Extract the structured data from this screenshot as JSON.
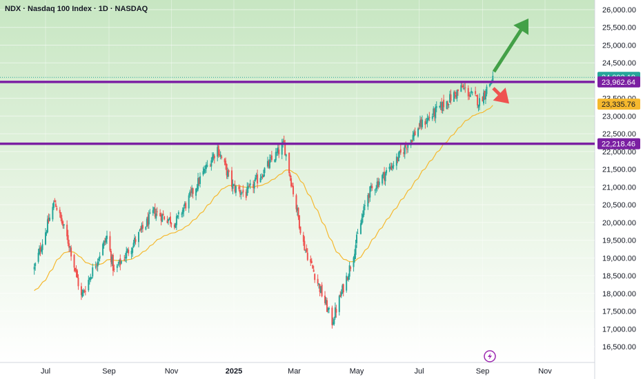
{
  "header": {
    "title": "NDX · Nasdaq 100 Index · 1D · NASDAQ"
  },
  "chart_data": {
    "type": "candlestick",
    "title": "NDX · Nasdaq 100 Index · 1D · NASDAQ",
    "y_ticks": [
      "26,000.00",
      "25,500.00",
      "25,000.00",
      "24,500.00",
      "24,000.00",
      "23,500.00",
      "23,000.00",
      "22,500.00",
      "22,000.00",
      "21,500.00",
      "21,000.00",
      "20,500.00",
      "20,000.00",
      "19,500.00",
      "19,000.00",
      "18,500.00",
      "18,000.00",
      "17,500.00",
      "17,000.00",
      "16,500.00"
    ],
    "x_ticks": [
      "Jul",
      "Sep",
      "Nov",
      "2025",
      "Mar",
      "May",
      "Jul",
      "Sep",
      "Nov"
    ],
    "ylim": [
      16200,
      26100
    ],
    "price_labels": [
      {
        "text": "24,092.19",
        "value": 24092.19,
        "color": "#26a69a"
      },
      {
        "text": "23,962.64",
        "value": 23962.64,
        "color": "#7b1fa2"
      },
      {
        "text": "23,335.76",
        "value": 23335.76,
        "color": "#f5b82e"
      },
      {
        "text": "22,218.46",
        "value": 22218.46,
        "color": "#7b1fa2"
      }
    ],
    "horizontal_levels": [
      23962.64,
      22218.46
    ],
    "moving_average": {
      "last_value": 23335.76,
      "color": "#f5b82e"
    },
    "anchors": [
      {
        "x": "2024-06-20",
        "y": 18700
      },
      {
        "x": "2024-07-10",
        "y": 20600
      },
      {
        "x": "2024-07-25",
        "y": 19300
      },
      {
        "x": "2024-08-05",
        "y": 17900
      },
      {
        "x": "2024-08-30",
        "y": 19600
      },
      {
        "x": "2024-09-06",
        "y": 18600
      },
      {
        "x": "2024-10-15",
        "y": 20300
      },
      {
        "x": "2024-11-05",
        "y": 20000
      },
      {
        "x": "2024-12-16",
        "y": 22100
      },
      {
        "x": "2024-12-31",
        "y": 21000
      },
      {
        "x": "2025-01-13",
        "y": 20800
      },
      {
        "x": "2025-02-19",
        "y": 22200
      },
      {
        "x": "2025-03-10",
        "y": 19400
      },
      {
        "x": "2025-04-07",
        "y": 17200
      },
      {
        "x": "2025-04-25",
        "y": 18800
      },
      {
        "x": "2025-05-12",
        "y": 20800
      },
      {
        "x": "2025-06-10",
        "y": 21800
      },
      {
        "x": "2025-07-01",
        "y": 22700
      },
      {
        "x": "2025-08-12",
        "y": 23800
      },
      {
        "x": "2025-08-29",
        "y": 23400
      },
      {
        "x": "2025-09-11",
        "y": 24092.19
      }
    ],
    "colors": {
      "up": "#26a69a",
      "down": "#ef5350",
      "levels": "#7b1fa2",
      "arrow_up": "#43a047",
      "arrow_down": "#ef5350"
    },
    "up_arrow_target": 25750,
    "down_arrow_target": 23350
  }
}
